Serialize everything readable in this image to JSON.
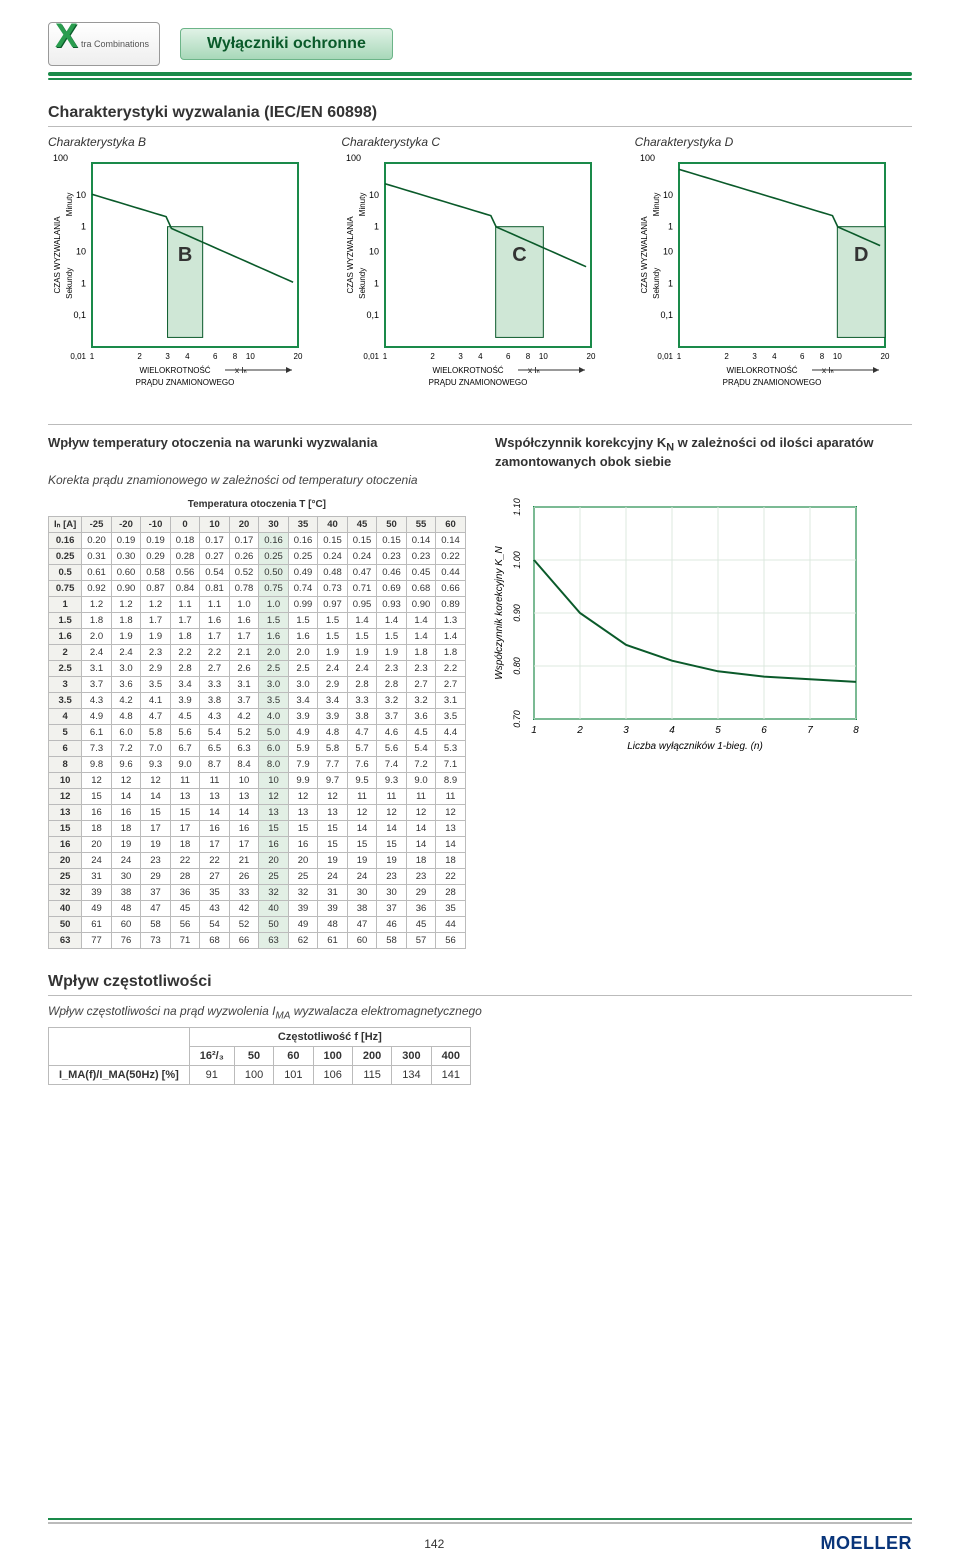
{
  "header": {
    "logo_text": "tra Combinations",
    "pill": "Wyłączniki ochronne"
  },
  "section_charak": {
    "title": "Charakterystyki wyzwalania (IEC/EN 60898)",
    "curves": [
      {
        "title": "Charakterystyka B",
        "letter": "B",
        "band_x": [
          3,
          5
        ]
      },
      {
        "title": "Charakterystyka C",
        "letter": "C",
        "band_x": [
          5,
          10
        ]
      },
      {
        "title": "Charakterystyka D",
        "letter": "D",
        "band_x": [
          10,
          20
        ]
      }
    ],
    "chart_style": {
      "y_label": "CZAS WYZWALANIA",
      "y_min_label": "Minuty",
      "y_sec_label": "Sekundy",
      "x_label_1": "WIELOKROTNOŚĆ",
      "x_label_2": "PRĄDU ZNAMIONOWEGO",
      "x_suffix": "x Iₙ",
      "top_y": "100",
      "y_ticks_min": [
        "10",
        "1"
      ],
      "y_ticks_sec": [
        "10",
        "1",
        "0,1"
      ],
      "x_ticks": [
        "0,01",
        "1",
        "2",
        "3",
        "4",
        "6",
        "8",
        "10",
        "20"
      ],
      "frame_color": "#1a8a4a",
      "grid_color": "#d4e8da",
      "band_color": "#cfe7d6",
      "curve_color": "#0a5a2a",
      "bg": "#ffffff"
    }
  },
  "section_temp": {
    "left_title": "Wpływ temperatury otoczenia na warunki wyzwalania",
    "right_title": "Współczynnik korekcyjny K",
    "right_sub": "N",
    "right_rest": " w zależności od ilości aparatów zamontowanych obok siebie",
    "korekta": "Korekta prądu znamionowego w zależności od temperatury otoczenia",
    "table_caption": "Temperatura otoczenia T [°C]",
    "col_headers": [
      "Iₙ [A]",
      "-25",
      "-20",
      "-10",
      "0",
      "10",
      "20",
      "30",
      "35",
      "40",
      "45",
      "50",
      "55",
      "60"
    ],
    "highlight_col_index": 7,
    "rows": [
      [
        "0.16",
        "0.20",
        "0.19",
        "0.19",
        "0.18",
        "0.17",
        "0.17",
        "0.16",
        "0.16",
        "0.15",
        "0.15",
        "0.15",
        "0.14",
        "0.14"
      ],
      [
        "0.25",
        "0.31",
        "0.30",
        "0.29",
        "0.28",
        "0.27",
        "0.26",
        "0.25",
        "0.25",
        "0.24",
        "0.24",
        "0.23",
        "0.23",
        "0.22"
      ],
      [
        "0.5",
        "0.61",
        "0.60",
        "0.58",
        "0.56",
        "0.54",
        "0.52",
        "0.50",
        "0.49",
        "0.48",
        "0.47",
        "0.46",
        "0.45",
        "0.44"
      ],
      [
        "0.75",
        "0.92",
        "0.90",
        "0.87",
        "0.84",
        "0.81",
        "0.78",
        "0.75",
        "0.74",
        "0.73",
        "0.71",
        "0.69",
        "0.68",
        "0.66"
      ],
      [
        "1",
        "1.2",
        "1.2",
        "1.2",
        "1.1",
        "1.1",
        "1.0",
        "1.0",
        "0.99",
        "0.97",
        "0.95",
        "0.93",
        "0.90",
        "0.89"
      ],
      [
        "1.5",
        "1.8",
        "1.8",
        "1.7",
        "1.7",
        "1.6",
        "1.6",
        "1.5",
        "1.5",
        "1.5",
        "1.4",
        "1.4",
        "1.4",
        "1.3"
      ],
      [
        "1.6",
        "2.0",
        "1.9",
        "1.9",
        "1.8",
        "1.7",
        "1.7",
        "1.6",
        "1.6",
        "1.5",
        "1.5",
        "1.5",
        "1.4",
        "1.4"
      ],
      [
        "2",
        "2.4",
        "2.4",
        "2.3",
        "2.2",
        "2.2",
        "2.1",
        "2.0",
        "2.0",
        "1.9",
        "1.9",
        "1.9",
        "1.8",
        "1.8"
      ],
      [
        "2.5",
        "3.1",
        "3.0",
        "2.9",
        "2.8",
        "2.7",
        "2.6",
        "2.5",
        "2.5",
        "2.4",
        "2.4",
        "2.3",
        "2.3",
        "2.2"
      ],
      [
        "3",
        "3.7",
        "3.6",
        "3.5",
        "3.4",
        "3.3",
        "3.1",
        "3.0",
        "3.0",
        "2.9",
        "2.8",
        "2.8",
        "2.7",
        "2.7"
      ],
      [
        "3.5",
        "4.3",
        "4.2",
        "4.1",
        "3.9",
        "3.8",
        "3.7",
        "3.5",
        "3.4",
        "3.4",
        "3.3",
        "3.2",
        "3.2",
        "3.1"
      ],
      [
        "4",
        "4.9",
        "4.8",
        "4.7",
        "4.5",
        "4.3",
        "4.2",
        "4.0",
        "3.9",
        "3.9",
        "3.8",
        "3.7",
        "3.6",
        "3.5"
      ],
      [
        "5",
        "6.1",
        "6.0",
        "5.8",
        "5.6",
        "5.4",
        "5.2",
        "5.0",
        "4.9",
        "4.8",
        "4.7",
        "4.6",
        "4.5",
        "4.4"
      ],
      [
        "6",
        "7.3",
        "7.2",
        "7.0",
        "6.7",
        "6.5",
        "6.3",
        "6.0",
        "5.9",
        "5.8",
        "5.7",
        "5.6",
        "5.4",
        "5.3"
      ],
      [
        "8",
        "9.8",
        "9.6",
        "9.3",
        "9.0",
        "8.7",
        "8.4",
        "8.0",
        "7.9",
        "7.7",
        "7.6",
        "7.4",
        "7.2",
        "7.1"
      ],
      [
        "10",
        "12",
        "12",
        "12",
        "11",
        "11",
        "10",
        "10",
        "9.9",
        "9.7",
        "9.5",
        "9.3",
        "9.0",
        "8.9"
      ],
      [
        "12",
        "15",
        "14",
        "14",
        "13",
        "13",
        "13",
        "12",
        "12",
        "12",
        "11",
        "11",
        "11",
        "11"
      ],
      [
        "13",
        "16",
        "16",
        "15",
        "15",
        "14",
        "14",
        "13",
        "13",
        "13",
        "12",
        "12",
        "12",
        "12"
      ],
      [
        "15",
        "18",
        "18",
        "17",
        "17",
        "16",
        "16",
        "15",
        "15",
        "15",
        "14",
        "14",
        "14",
        "13"
      ],
      [
        "16",
        "20",
        "19",
        "19",
        "18",
        "17",
        "17",
        "16",
        "16",
        "15",
        "15",
        "15",
        "14",
        "14"
      ],
      [
        "20",
        "24",
        "24",
        "23",
        "22",
        "22",
        "21",
        "20",
        "20",
        "19",
        "19",
        "19",
        "18",
        "18"
      ],
      [
        "25",
        "31",
        "30",
        "29",
        "28",
        "27",
        "26",
        "25",
        "25",
        "24",
        "24",
        "23",
        "23",
        "22"
      ],
      [
        "32",
        "39",
        "38",
        "37",
        "36",
        "35",
        "33",
        "32",
        "32",
        "31",
        "30",
        "30",
        "29",
        "28"
      ],
      [
        "40",
        "49",
        "48",
        "47",
        "45",
        "43",
        "42",
        "40",
        "39",
        "39",
        "38",
        "37",
        "36",
        "35"
      ],
      [
        "50",
        "61",
        "60",
        "58",
        "56",
        "54",
        "52",
        "50",
        "49",
        "48",
        "47",
        "46",
        "45",
        "44"
      ],
      [
        "63",
        "77",
        "76",
        "73",
        "71",
        "68",
        "66",
        "63",
        "62",
        "61",
        "60",
        "58",
        "57",
        "56"
      ]
    ]
  },
  "kn_chart": {
    "x_label": "Liczba wyłączników 1-bieg. (n)",
    "y_label": "Współczynnik korekcyjny K_N",
    "x_ticks": [
      1,
      2,
      3,
      4,
      5,
      6,
      7,
      8
    ],
    "y_ticks": [
      "0.70",
      "0.80",
      "0.90",
      "1.00",
      "1.10"
    ],
    "points": [
      [
        1,
        1.0
      ],
      [
        2,
        0.9
      ],
      [
        3,
        0.84
      ],
      [
        4,
        0.81
      ],
      [
        5,
        0.79
      ],
      [
        6,
        0.78
      ],
      [
        7,
        0.775
      ],
      [
        8,
        0.77
      ]
    ],
    "frame_color": "#1a8a4a",
    "grid_color": "#dce9df",
    "curve_color": "#0a5a2a",
    "bg": "#ffffff"
  },
  "section_freq": {
    "title": "Wpływ częstotliwości",
    "subtitle": "Wpływ częstotliwości na prąd wyzwolenia I",
    "sub_ma": "MA",
    "sub_rest": " wyzwalacza elektromagnetycznego",
    "col_title": "Częstotliwość f [Hz]",
    "cols": [
      "16²/₃",
      "50",
      "60",
      "100",
      "200",
      "300",
      "400"
    ],
    "row_label": "I_MA(f)/I_MA(50Hz) [%]",
    "row_vals": [
      "91",
      "100",
      "101",
      "106",
      "115",
      "134",
      "141"
    ]
  },
  "footer": {
    "page": "142",
    "brand": "MOELLER"
  }
}
